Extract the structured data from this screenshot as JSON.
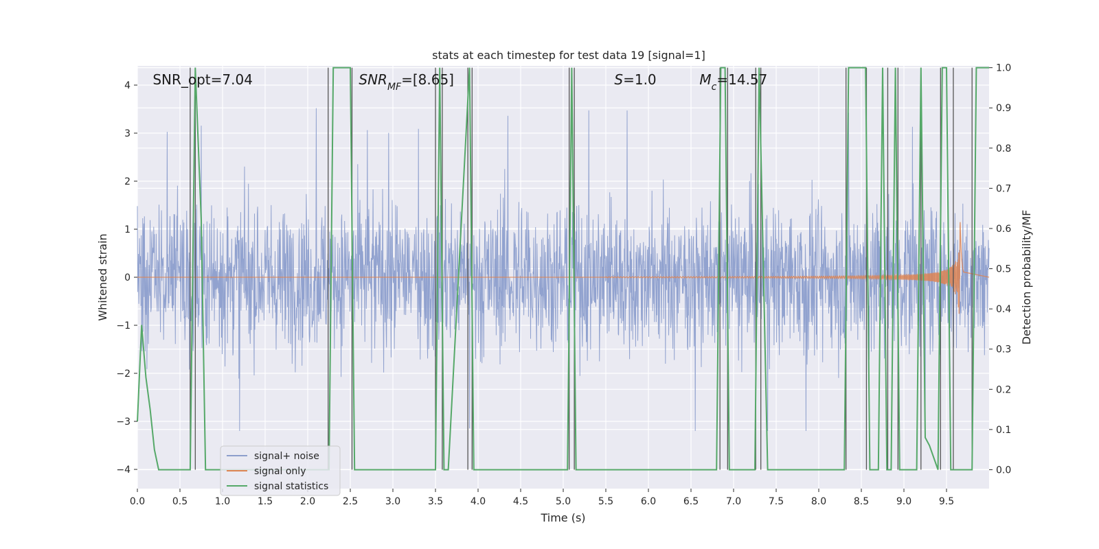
{
  "chart_data": {
    "type": "line",
    "title": "stats at each timestep for test data 19 [signal=1]",
    "xlabel": "Time (s)",
    "ylabel": "Whitened strain",
    "ylabel_right": "Detection probability/MF",
    "xlim": [
      0.0,
      10.0
    ],
    "ylim": [
      -4.4,
      4.4
    ],
    "ylim_right": [
      -0.047,
      1.0045
    ],
    "xticks": [
      "0.0",
      "0.5",
      "1.0",
      "1.5",
      "2.0",
      "2.5",
      "3.0",
      "3.5",
      "4.0",
      "4.5",
      "5.0",
      "5.5",
      "6.0",
      "6.5",
      "7.0",
      "7.5",
      "8.0",
      "8.5",
      "9.0",
      "9.5"
    ],
    "yticks": [
      "4",
      "3",
      "2",
      "1",
      "0",
      "−1",
      "−2",
      "−3",
      "−4"
    ],
    "yticks_right": [
      "1.0",
      "0.9",
      "0.8",
      "0.7",
      "0.6",
      "0.5",
      "0.4",
      "0.3",
      "0.2",
      "0.1",
      "0.0"
    ],
    "annotations": [
      {
        "text": "SNR_opt=7.04",
        "x": 0.18
      },
      {
        "text": "SNR",
        "sub": "MF",
        "suffix": "=[8.65]",
        "x": 2.6
      },
      {
        "text": "S",
        "suffix": "=1.0",
        "x": 5.6
      },
      {
        "text": "M",
        "sub": "c",
        "suffix": "=14.57",
        "x": 6.6
      }
    ],
    "legend": {
      "position": "lower-left",
      "entries": [
        "signal+ noise",
        "signal only",
        "signal statistics"
      ]
    },
    "colors": {
      "noise": "#8c9ecc",
      "signal": "#dd8452",
      "stats": "#55a868",
      "vline": "#555555",
      "plot_bg": "#eaeaf2",
      "grid": "#ffffff"
    },
    "series": [
      {
        "name": "signal+ noise",
        "kind": "noise",
        "envelope": [
          -2.5,
          3.6
        ],
        "peak_times": [
          0.35,
          0.75,
          1.2,
          2.1,
          2.7,
          2.95,
          3.3,
          3.9,
          4.35,
          5.3,
          5.75,
          6.55,
          7.4,
          7.85,
          8.35,
          9.1,
          9.25
        ]
      },
      {
        "name": "signal only",
        "kind": "chirp",
        "start": 5.5,
        "peak": 9.66,
        "max_amp": 1.2
      },
      {
        "name": "signal statistics",
        "kind": "step",
        "x": [
          0.0,
          0.05,
          0.1,
          0.15,
          0.2,
          0.25,
          0.3,
          0.62,
          0.68,
          0.75,
          0.8,
          2.25,
          2.3,
          2.5,
          2.55,
          3.45,
          3.5,
          3.55,
          3.6,
          3.65,
          3.9,
          3.95,
          4.05,
          5.05,
          5.1,
          5.15,
          5.22,
          6.8,
          6.85,
          6.9,
          6.95,
          7.25,
          7.3,
          7.4,
          8.3,
          8.35,
          8.55,
          8.6,
          8.7,
          8.75,
          8.8,
          8.85,
          8.9,
          8.95,
          9.15,
          9.2,
          9.25,
          9.3,
          9.4,
          9.45,
          9.5,
          9.55,
          9.6,
          9.8,
          9.85,
          9.9,
          9.95,
          10.0
        ],
        "values": [
          0.12,
          0.36,
          0.23,
          0.15,
          0.05,
          0.0,
          0.0,
          0.0,
          1.0,
          0.62,
          0.0,
          0.0,
          1.0,
          1.0,
          0.0,
          0.0,
          0.0,
          1.0,
          0.0,
          0.0,
          1.0,
          0.0,
          0.0,
          0.0,
          1.0,
          0.0,
          0.0,
          0.0,
          1.0,
          1.0,
          0.0,
          0.0,
          1.0,
          0.0,
          0.0,
          1.0,
          1.0,
          0.0,
          0.0,
          1.0,
          0.0,
          0.0,
          1.0,
          0.0,
          0.0,
          1.0,
          0.08,
          0.06,
          0.0,
          1.0,
          1.0,
          0.0,
          0.0,
          0.0,
          1.0,
          1.0,
          1.0,
          1.0
        ]
      }
    ],
    "vlines": [
      0.62,
      0.68,
      2.24,
      2.52,
      3.5,
      3.58,
      3.88,
      3.93,
      5.07,
      5.13,
      6.84,
      6.93,
      7.26,
      7.32,
      8.32,
      8.56,
      8.81,
      8.93,
      9.2,
      9.43,
      9.58,
      9.8
    ]
  }
}
